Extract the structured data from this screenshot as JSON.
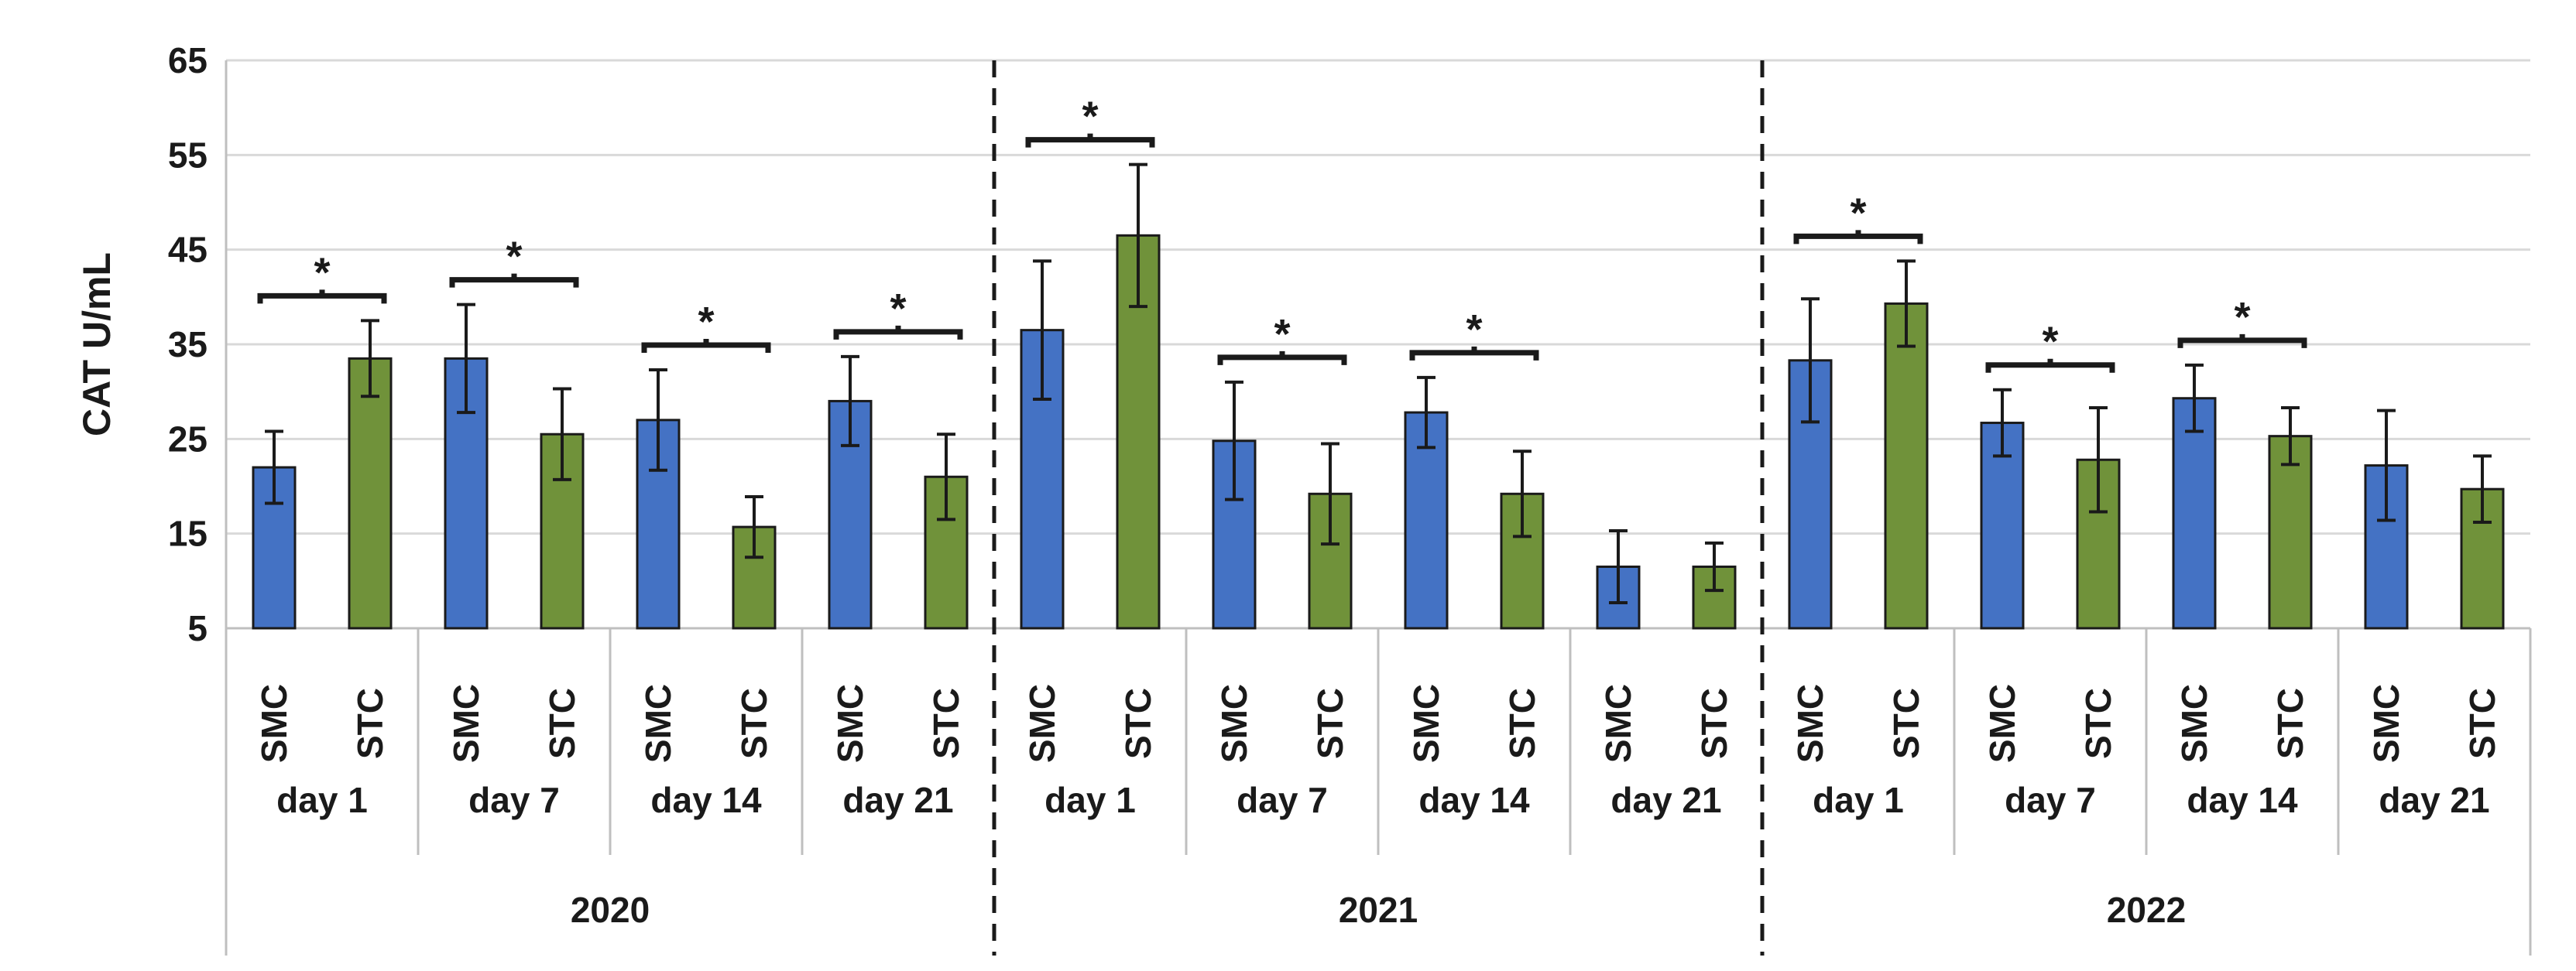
{
  "chart_data": {
    "type": "bar",
    "ylabel": "CAT U/mL",
    "ylim": [
      5,
      65
    ],
    "yticks": [
      5,
      15,
      25,
      35,
      45,
      55,
      65
    ],
    "grid": true,
    "significance_marker": "*",
    "colors": {
      "SMC": "#4472c4",
      "STC": "#70923a"
    },
    "years": [
      {
        "label": "2020",
        "days": [
          {
            "label": "day 1",
            "bars": [
              {
                "group": "SMC",
                "value": 22.0,
                "err": 3.8
              },
              {
                "group": "STC",
                "value": 33.5,
                "err": 4.0
              }
            ],
            "significant": true
          },
          {
            "label": "day 7",
            "bars": [
              {
                "group": "SMC",
                "value": 33.5,
                "err": 5.7
              },
              {
                "group": "STC",
                "value": 25.5,
                "err": 4.8
              }
            ],
            "significant": true
          },
          {
            "label": "day 14",
            "bars": [
              {
                "group": "SMC",
                "value": 27.0,
                "err": 5.3
              },
              {
                "group": "STC",
                "value": 15.7,
                "err": 3.2
              }
            ],
            "significant": true
          },
          {
            "label": "day 21",
            "bars": [
              {
                "group": "SMC",
                "value": 29.0,
                "err": 4.7
              },
              {
                "group": "STC",
                "value": 21.0,
                "err": 4.5
              }
            ],
            "significant": true
          }
        ]
      },
      {
        "label": "2021",
        "days": [
          {
            "label": "day 1",
            "bars": [
              {
                "group": "SMC",
                "value": 36.5,
                "err": 7.3
              },
              {
                "group": "STC",
                "value": 46.5,
                "err": 7.5
              }
            ],
            "significant": true
          },
          {
            "label": "day 7",
            "bars": [
              {
                "group": "SMC",
                "value": 24.8,
                "err": 6.2
              },
              {
                "group": "STC",
                "value": 19.2,
                "err": 5.3
              }
            ],
            "significant": true
          },
          {
            "label": "day 14",
            "bars": [
              {
                "group": "SMC",
                "value": 27.8,
                "err": 3.7
              },
              {
                "group": "STC",
                "value": 19.2,
                "err": 4.5
              }
            ],
            "significant": true
          },
          {
            "label": "day 21",
            "bars": [
              {
                "group": "SMC",
                "value": 11.5,
                "err": 3.8
              },
              {
                "group": "STC",
                "value": 11.5,
                "err": 2.5
              }
            ],
            "significant": false
          }
        ]
      },
      {
        "label": "2022",
        "days": [
          {
            "label": "day 1",
            "bars": [
              {
                "group": "SMC",
                "value": 33.3,
                "err": 6.5
              },
              {
                "group": "STC",
                "value": 39.3,
                "err": 4.5
              }
            ],
            "significant": true
          },
          {
            "label": "day 7",
            "bars": [
              {
                "group": "SMC",
                "value": 26.7,
                "err": 3.5
              },
              {
                "group": "STC",
                "value": 22.8,
                "err": 5.5
              }
            ],
            "significant": true
          },
          {
            "label": "day 14",
            "bars": [
              {
                "group": "SMC",
                "value": 29.3,
                "err": 3.5
              },
              {
                "group": "STC",
                "value": 25.3,
                "err": 3.0
              }
            ],
            "significant": true
          },
          {
            "label": "day 21",
            "bars": [
              {
                "group": "SMC",
                "value": 22.2,
                "err": 5.8
              },
              {
                "group": "STC",
                "value": 19.7,
                "err": 3.5
              }
            ],
            "significant": false
          }
        ]
      }
    ]
  }
}
